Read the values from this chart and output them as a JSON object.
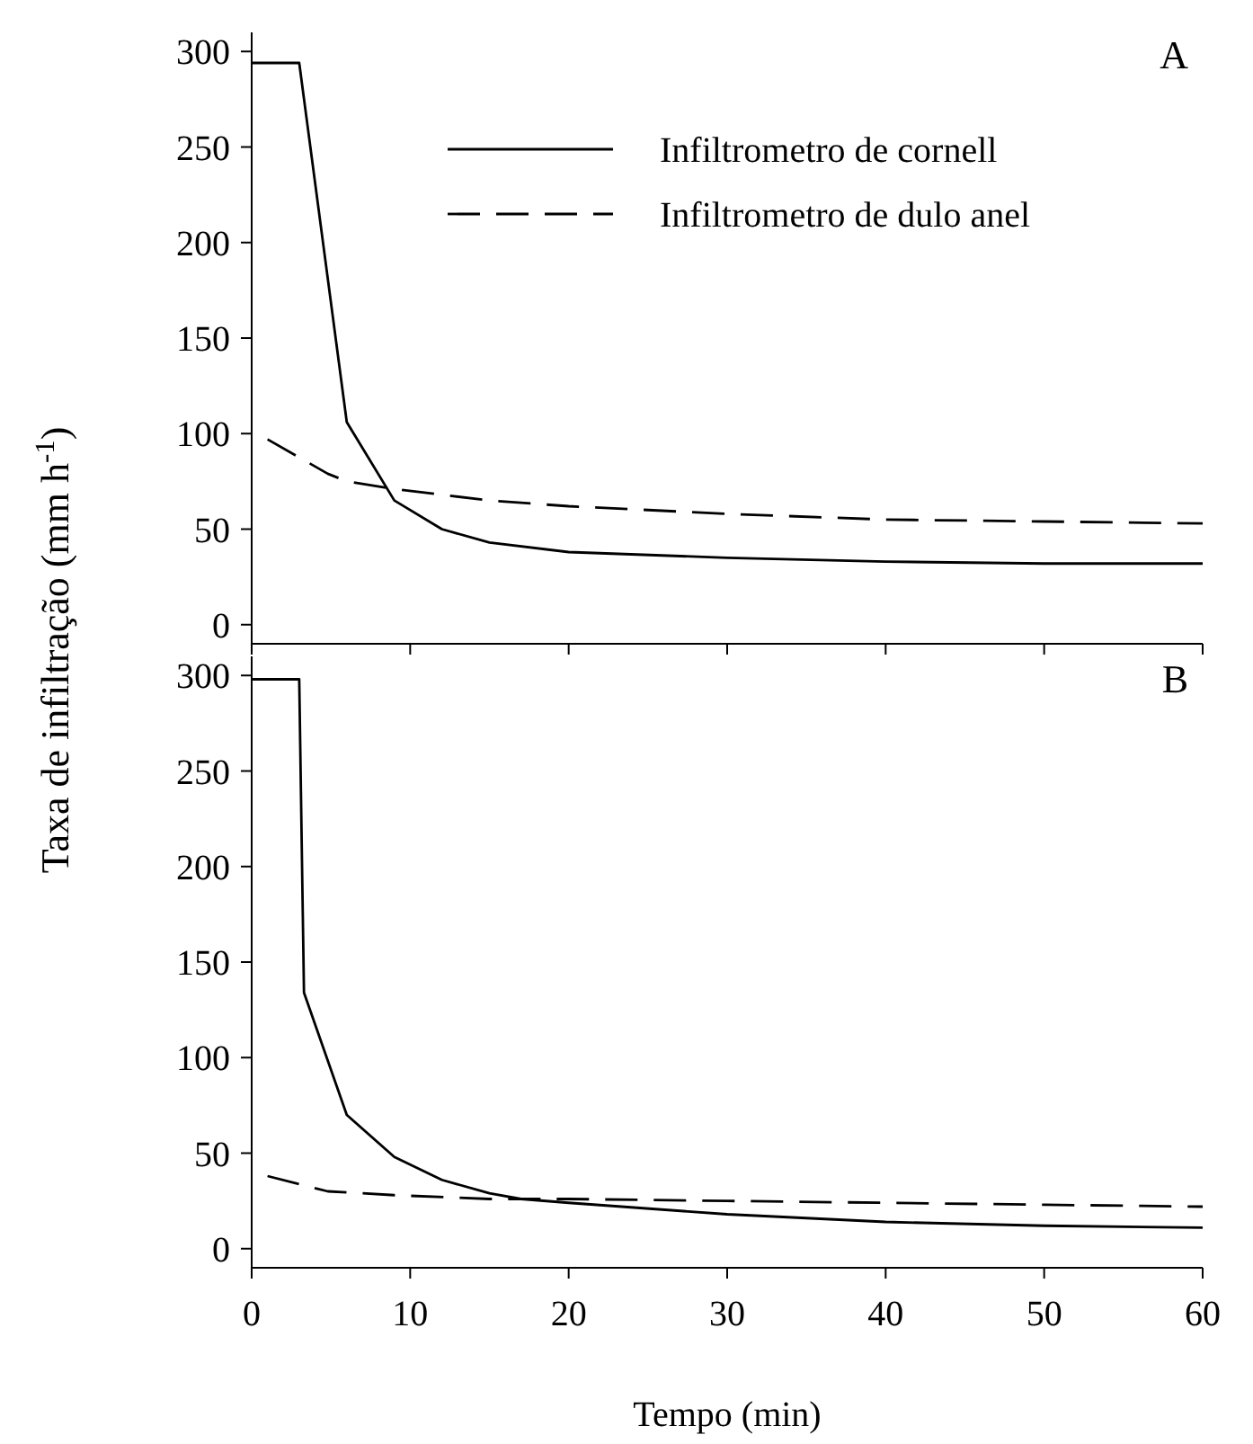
{
  "chart_data": [
    {
      "type": "line",
      "ylabel": "Taxa de infiltração (mm h$^{-1}$)",
      "xlim": [
        0,
        60
      ],
      "xticks": [
        0,
        10,
        20,
        30,
        40,
        50,
        60
      ],
      "ylim": [
        -10,
        310
      ],
      "yticks": [
        0,
        50,
        100,
        150,
        200,
        250,
        300
      ],
      "tick_labels": "y",
      "legend": "top right",
      "grid": false,
      "marker": "none",
      "annotations": [
        "A"
      ],
      "series": [
        {
          "name": "Infiltrometro de cornell",
          "color": "#000000",
          "line_style": "solid",
          "x": [
            0,
            3,
            6,
            9,
            12,
            15,
            20,
            30,
            40,
            50,
            60
          ],
          "values": [
            294,
            294,
            106,
            65,
            50,
            43,
            38,
            35,
            33,
            32,
            32
          ]
        },
        {
          "name": "Infiltrometro de dulo anel",
          "color": "#000000",
          "line_style": "dashed",
          "x": [
            1,
            4.8,
            6,
            9,
            15,
            20,
            30,
            40,
            50,
            60
          ],
          "values": [
            97,
            79,
            75,
            71,
            65,
            62,
            58,
            55,
            54,
            53
          ]
        }
      ]
    },
    {
      "type": "line",
      "xlabel": "Tempo (min)",
      "xlim": [
        0,
        60
      ],
      "xticks": [
        0,
        10,
        20,
        30,
        40,
        50,
        60
      ],
      "ylim": [
        -10,
        310
      ],
      "yticks": [
        0,
        50,
        100,
        150,
        200,
        250,
        300
      ],
      "legend": false,
      "grid": false,
      "marker": "none",
      "annotations": [
        "B"
      ],
      "series": [
        {
          "color": "#000000",
          "line_style": "solid",
          "x": [
            0,
            3,
            3.3,
            6,
            9,
            12,
            15,
            17,
            20,
            30,
            40,
            50,
            60
          ],
          "values": [
            298,
            298,
            134,
            70,
            48,
            36,
            29,
            26,
            24,
            18,
            14,
            12,
            11
          ]
        },
        {
          "color": "#000000",
          "line_style": "dashed",
          "x": [
            1,
            4.8,
            9,
            15,
            20,
            30,
            40,
            50,
            60
          ],
          "values": [
            38,
            30,
            28,
            26,
            26,
            25,
            24,
            23,
            22
          ]
        }
      ]
    }
  ]
}
